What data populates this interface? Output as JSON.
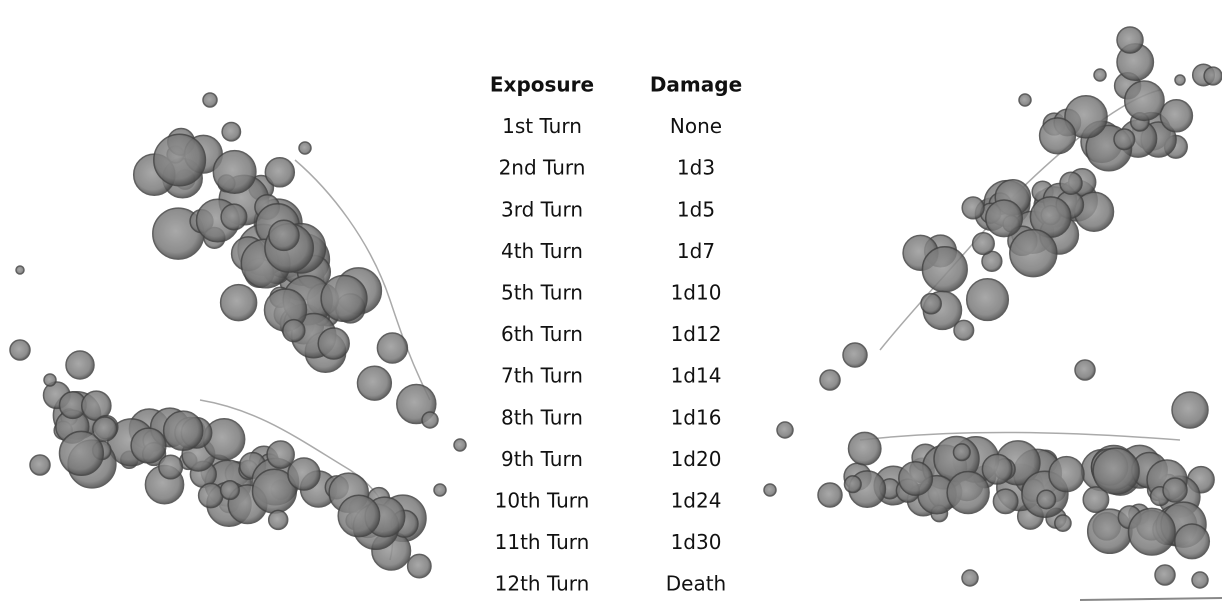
{
  "table": {
    "header": [
      "Exposure",
      "Damage"
    ],
    "rows": [
      [
        "1st Turn",
        "None"
      ],
      [
        "2nd Turn",
        "1d3"
      ],
      [
        "3rd Turn",
        "1d5"
      ],
      [
        "4th Turn",
        "1d7"
      ],
      [
        "5th Turn",
        "1d10"
      ],
      [
        "6th Turn",
        "1d12"
      ],
      [
        "7th Turn",
        "1d14"
      ],
      [
        "8th Turn",
        "1d16"
      ],
      [
        "9th Turn",
        "1d20"
      ],
      [
        "10th Turn",
        "1d24"
      ],
      [
        "11th Turn",
        "1d30"
      ],
      [
        "12th Turn",
        "Death"
      ]
    ]
  }
}
